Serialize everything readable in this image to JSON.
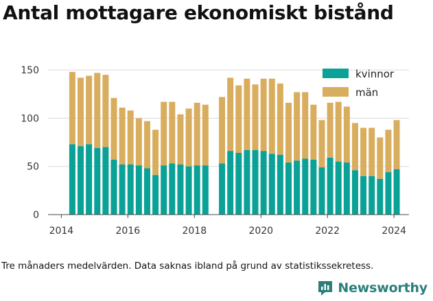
{
  "title": "Antal mottagare ekonomiskt bistånd",
  "footnote": "Tre månaders medelvärden. Data saknas ibland på grund av statistikssekretess.",
  "brand": {
    "name": "Newsworthy",
    "icon": "bar-chart-logo-icon",
    "color": "#2a7f7a"
  },
  "chart_data": {
    "type": "bar",
    "stacked": true,
    "x_ticks": [
      "2014",
      "2016",
      "2018",
      "2020",
      "2022",
      "2024"
    ],
    "y_ticks": [
      "0",
      "50",
      "100",
      "150"
    ],
    "ylim": [
      0,
      160
    ],
    "xlim": [
      2013.6,
      2024.45
    ],
    "grid": true,
    "legend_position": "top-right",
    "x": [
      2014.33,
      2014.58,
      2014.83,
      2015.08,
      2015.33,
      2015.58,
      2015.83,
      2016.08,
      2016.33,
      2016.58,
      2016.83,
      2017.08,
      2017.33,
      2017.58,
      2017.83,
      2018.08,
      2018.33,
      2018.83,
      2019.08,
      2019.33,
      2019.58,
      2019.83,
      2020.08,
      2020.33,
      2020.58,
      2020.83,
      2021.08,
      2021.33,
      2021.58,
      2021.83,
      2022.08,
      2022.33,
      2022.58,
      2022.83,
      2023.08,
      2023.33,
      2023.58,
      2023.83,
      2024.08
    ],
    "series": [
      {
        "name": "kvinnor",
        "color": "#0aa196",
        "values": [
          73,
          71,
          73,
          69,
          70,
          57,
          52,
          52,
          51,
          48,
          41,
          51,
          53,
          52,
          50,
          51,
          51,
          53,
          66,
          64,
          67,
          67,
          66,
          63,
          62,
          54,
          56,
          58,
          57,
          49,
          59,
          55,
          54,
          46,
          40,
          40,
          37,
          44,
          47
        ]
      },
      {
        "name": "män",
        "color": "#d9ad5e",
        "values": [
          75,
          71,
          71,
          78,
          75,
          64,
          59,
          56,
          49,
          49,
          47,
          66,
          64,
          52,
          60,
          65,
          63,
          69,
          76,
          70,
          74,
          68,
          75,
          78,
          74,
          62,
          71,
          69,
          57,
          49,
          57,
          62,
          58,
          49,
          50,
          50,
          43,
          44,
          51
        ]
      }
    ]
  }
}
